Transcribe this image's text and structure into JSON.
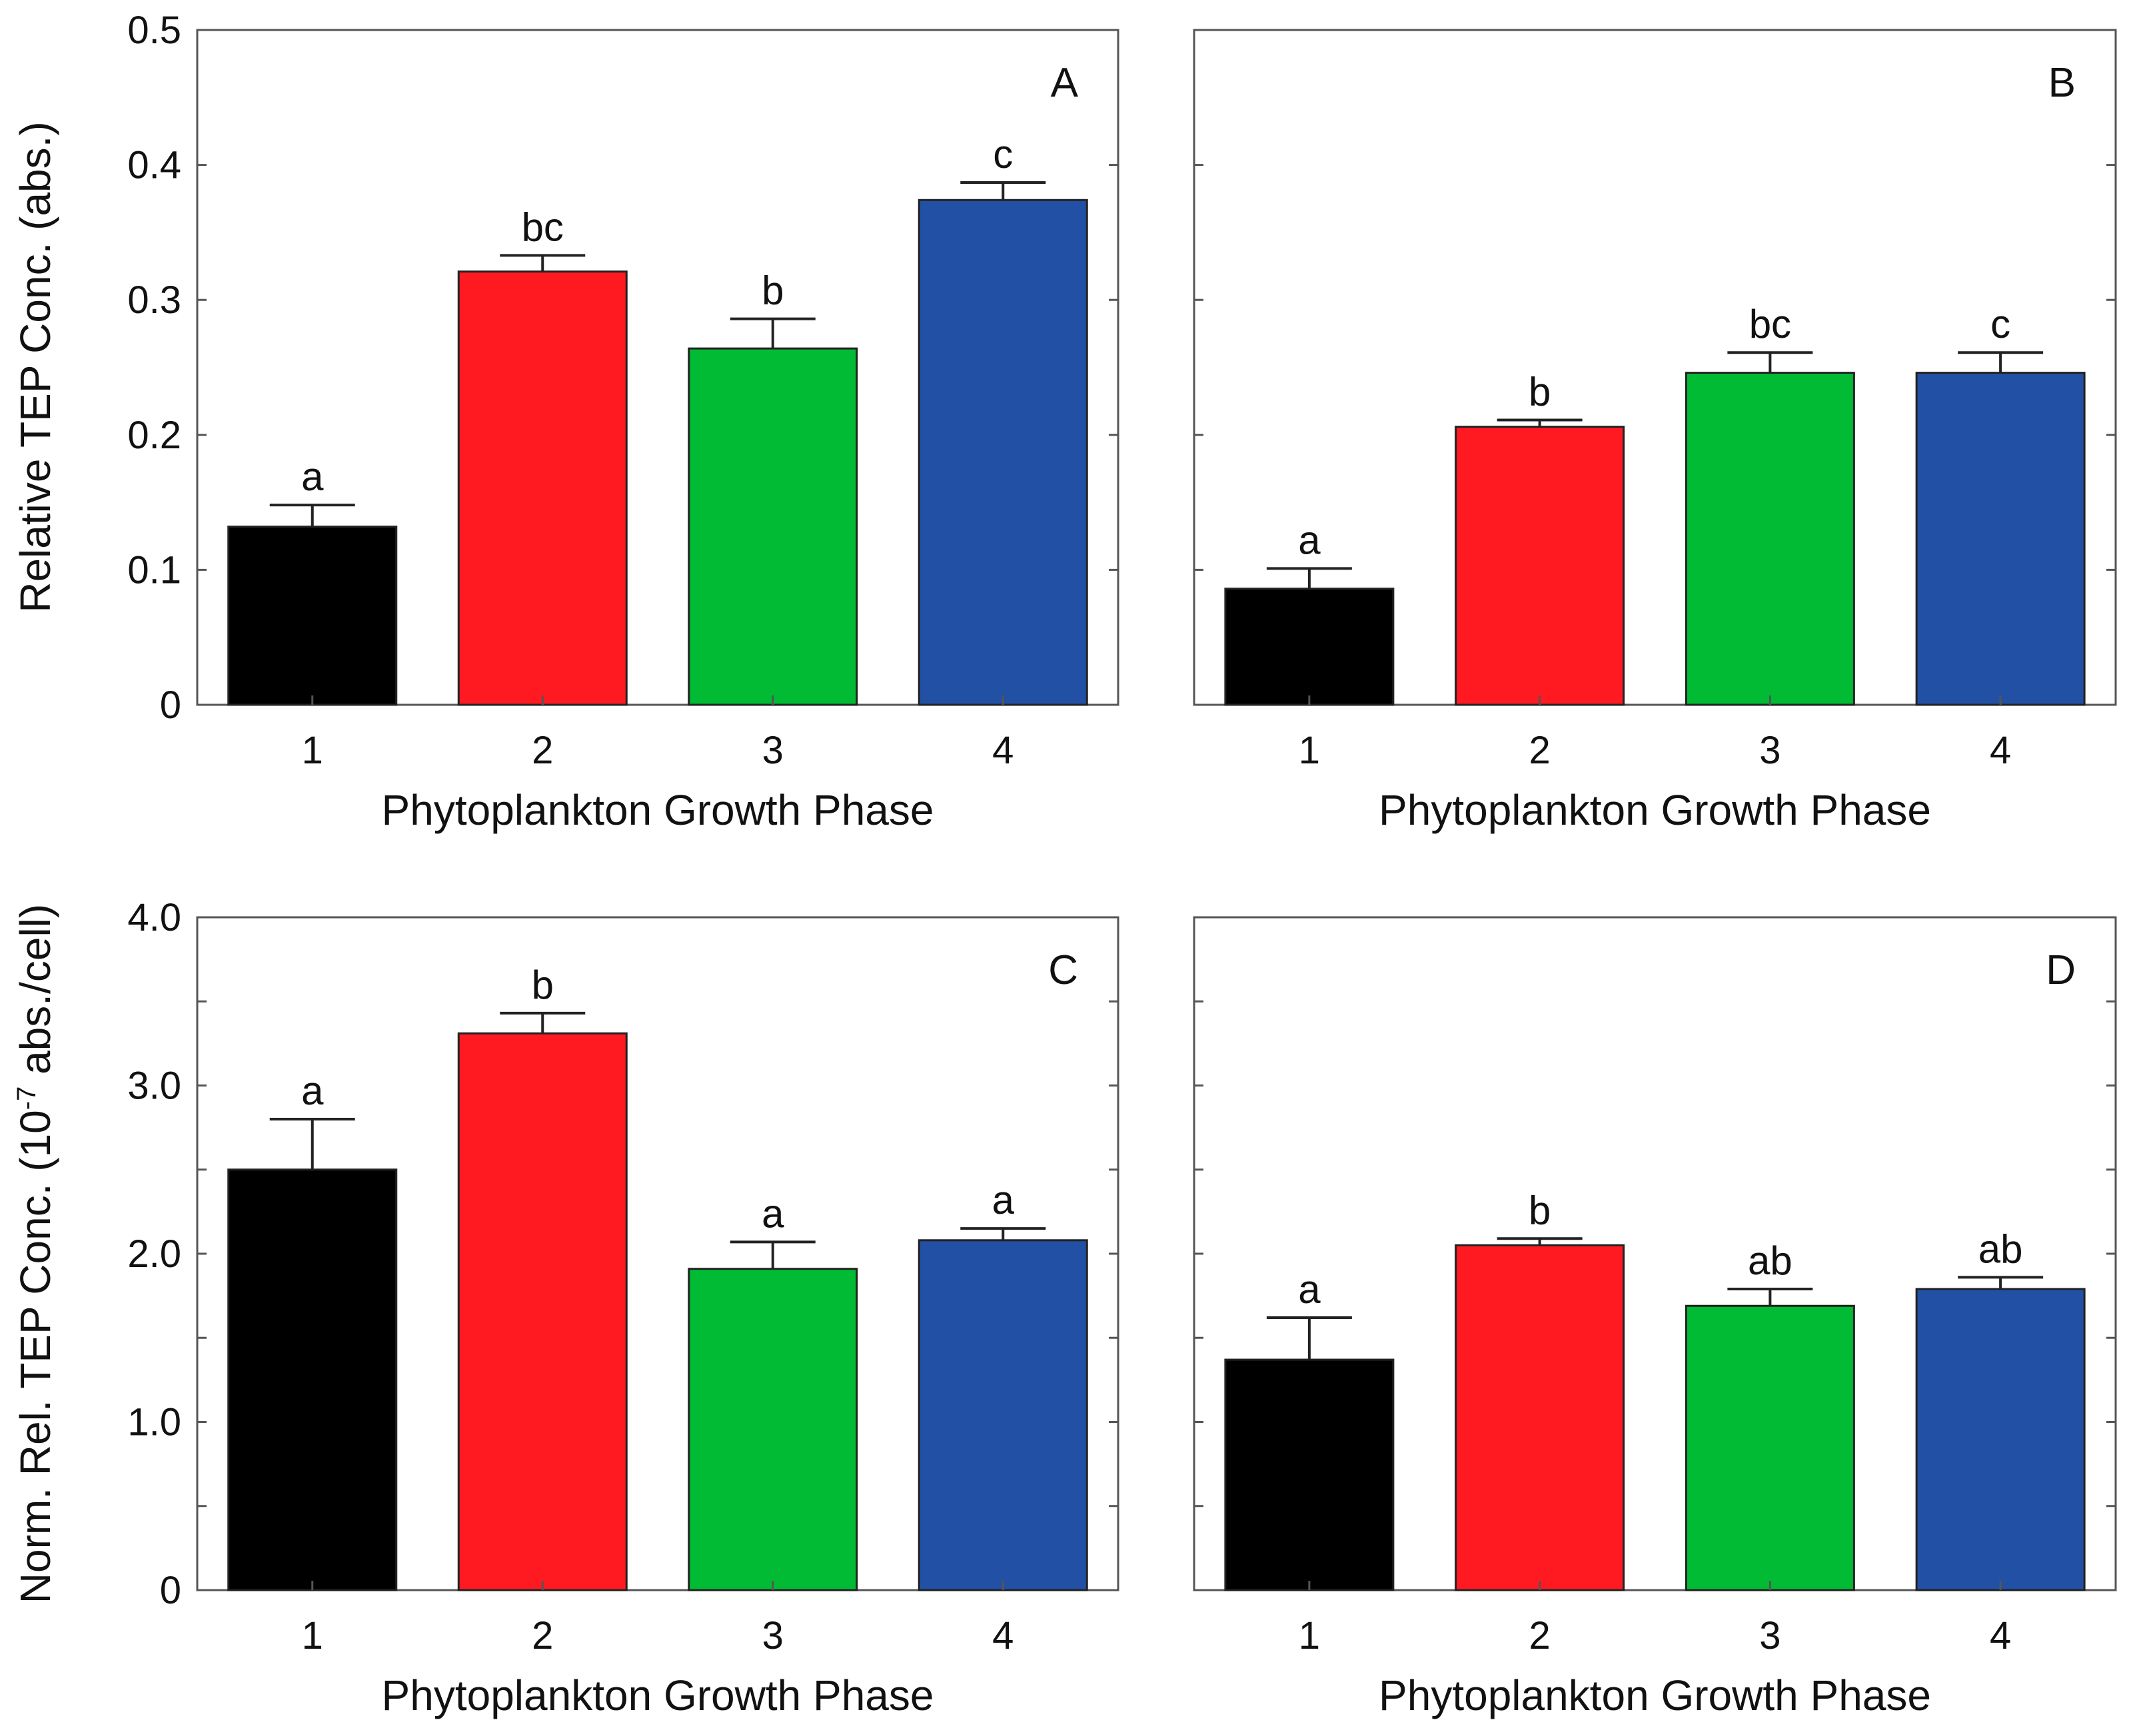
{
  "chart_data": [
    {
      "panel": "A",
      "type": "bar",
      "categories": [
        "1",
        "2",
        "3",
        "4"
      ],
      "values": [
        0.132,
        0.321,
        0.264,
        0.374
      ],
      "errors": [
        0.016,
        0.012,
        0.022,
        0.013
      ],
      "significance": [
        "a",
        "bc",
        "b",
        "c"
      ],
      "colors": [
        "#000000",
        "#ff1a22",
        "#00bb33",
        "#2250a4"
      ],
      "xlabel": "Phytoplankton Growth Phase",
      "ylabel": "Relative TEP Conc. (abs.)",
      "ylim": [
        0,
        0.5
      ],
      "yticks": [
        0,
        0.1,
        0.2,
        0.3,
        0.4,
        0.5
      ],
      "ytick_labels": [
        "0",
        "0.1",
        "0.2",
        "0.3",
        "0.4",
        "0.5"
      ]
    },
    {
      "panel": "B",
      "type": "bar",
      "categories": [
        "1",
        "2",
        "3",
        "4"
      ],
      "values": [
        0.086,
        0.206,
        0.246,
        0.246
      ],
      "errors": [
        0.015,
        0.005,
        0.015,
        0.015
      ],
      "significance": [
        "a",
        "b",
        "bc",
        "c"
      ],
      "colors": [
        "#000000",
        "#ff1a22",
        "#00bb33",
        "#2250a4"
      ],
      "xlabel": "Phytoplankton Growth Phase",
      "ylabel": "",
      "ylim": [
        0,
        0.5
      ],
      "yticks": [
        0,
        0.1,
        0.2,
        0.3,
        0.4,
        0.5
      ],
      "ytick_labels": []
    },
    {
      "panel": "C",
      "type": "bar",
      "categories": [
        "1",
        "2",
        "3",
        "4"
      ],
      "values": [
        2.5,
        3.31,
        1.91,
        2.08
      ],
      "errors": [
        0.3,
        0.12,
        0.16,
        0.07
      ],
      "significance": [
        "a",
        "b",
        "a",
        "a"
      ],
      "colors": [
        "#000000",
        "#ff1a22",
        "#00bb33",
        "#2250a4"
      ],
      "xlabel": "Phytoplankton Growth Phase",
      "ylabel": "Norm. Rel. TEP Conc. (10",
      "ylabel_sup": "-7",
      "ylabel_rest": " abs./cell)",
      "ylim": [
        0,
        4.0
      ],
      "yticks": [
        0,
        0.5,
        1.0,
        1.5,
        2.0,
        2.5,
        3.0,
        3.5,
        4.0
      ],
      "ytick_labels": [
        "0",
        "",
        "1.0",
        "",
        "2.0",
        "",
        "3.0",
        "",
        "4.0"
      ]
    },
    {
      "panel": "D",
      "type": "bar",
      "categories": [
        "1",
        "2",
        "3",
        "4"
      ],
      "values": [
        1.37,
        2.05,
        1.69,
        1.79
      ],
      "errors": [
        0.25,
        0.04,
        0.1,
        0.07
      ],
      "significance": [
        "a",
        "b",
        "ab",
        "ab"
      ],
      "colors": [
        "#000000",
        "#ff1a22",
        "#00bb33",
        "#2250a4"
      ],
      "xlabel": "Phytoplankton Growth Phase",
      "ylabel": "",
      "ylim": [
        0,
        4.0
      ],
      "yticks": [
        0,
        0.5,
        1.0,
        1.5,
        2.0,
        2.5,
        3.0,
        3.5,
        4.0
      ],
      "ytick_labels": []
    }
  ]
}
